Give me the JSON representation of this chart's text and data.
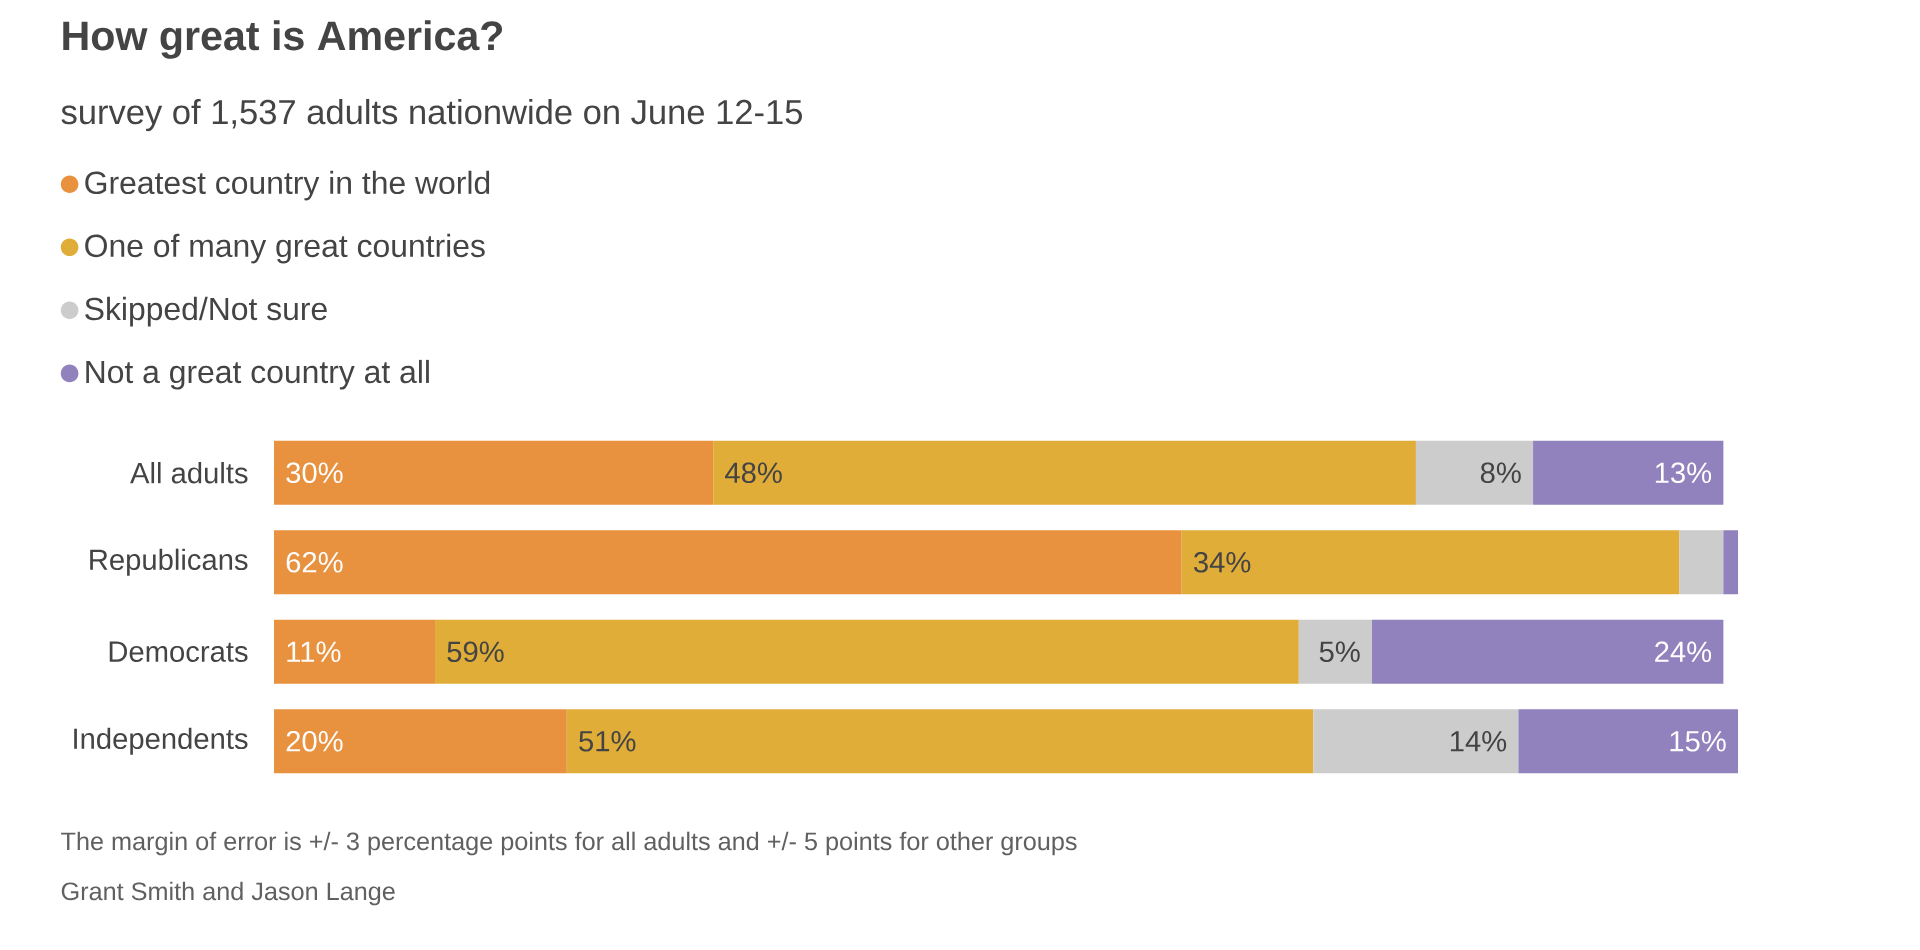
{
  "chart_data": {
    "type": "bar",
    "orientation": "horizontal",
    "stacked": true,
    "title": "How great is America?",
    "subtitle": "survey of 1,537 adults nationwide on June 12-15",
    "categories": [
      "All adults",
      "Republicans",
      "Democrats",
      "Independents"
    ],
    "series": [
      {
        "name": "Greatest country in the world",
        "color": "#e8913f",
        "values": [
          30,
          62,
          11,
          20
        ],
        "value_labels": [
          "30%",
          "62%",
          "11%",
          "20%"
        ]
      },
      {
        "name": "One of many great countries",
        "color": "#e0ad39",
        "values": [
          48,
          34,
          59,
          51
        ],
        "value_labels": [
          "48%",
          "34%",
          "59%",
          "51%"
        ]
      },
      {
        "name": "Skipped/Not sure",
        "color": "#cccccc",
        "values": [
          8,
          3,
          5,
          14
        ],
        "value_labels": [
          "8%",
          null,
          "5%",
          "14%"
        ]
      },
      {
        "name": "Not a great country at all",
        "color": "#9182bd",
        "values": [
          13,
          1,
          24,
          15
        ],
        "value_labels": [
          "13%",
          null,
          "24%",
          "15%"
        ]
      }
    ],
    "legend": "top left",
    "tick_labels": "y",
    "annotations": [
      "The margin of error is +/- 3 percentage points for all adults and +/- 5 points for other groups",
      "Grant Smith and Jason Lange"
    ]
  }
}
